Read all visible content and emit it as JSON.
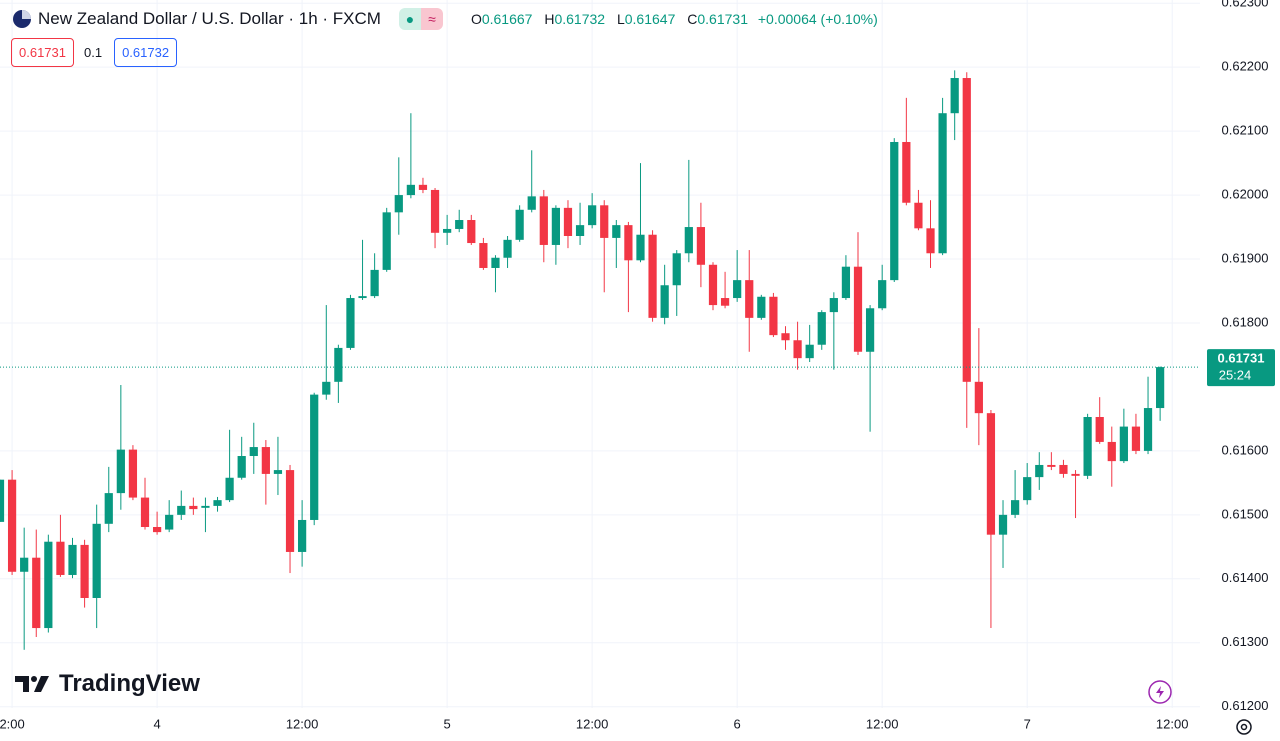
{
  "header": {
    "symbol": "New Zealand Dollar / U.S. Dollar · 1h · FXCM",
    "open_key": "O",
    "open": "0.61667",
    "high_key": "H",
    "high": "0.61732",
    "low_key": "L",
    "low": "0.61647",
    "close_key": "C",
    "close": "0.61731",
    "change": "+0.00064 (+0.10%)",
    "sell": "0.61731",
    "spread": "0.1",
    "buy": "0.61732",
    "logo": "TradingView"
  },
  "chart_data": {
    "type": "candlestick",
    "up_color": "#089981",
    "down_color": "#f23645",
    "grid": true,
    "x": [
      -13,
      -12,
      -11,
      -10,
      -9,
      -8,
      -7,
      -6,
      -5,
      -4,
      -3,
      -2,
      -1,
      0,
      1,
      2,
      3,
      4,
      5,
      6,
      7,
      8,
      9,
      10,
      11,
      12,
      13,
      14,
      15,
      16,
      17,
      18,
      19,
      20,
      21,
      22,
      23,
      24,
      25,
      26,
      27,
      28,
      29,
      30,
      31,
      32,
      33,
      34,
      35,
      36,
      37,
      38,
      39,
      40,
      41,
      42,
      43,
      44,
      45,
      46,
      47,
      48,
      49,
      50,
      51,
      52,
      53,
      54,
      55,
      56,
      57,
      58,
      59,
      60,
      61,
      62,
      63,
      64,
      65,
      66,
      67,
      68,
      69,
      70,
      71,
      72,
      73,
      74,
      75,
      76,
      77,
      78,
      79,
      80,
      81,
      82,
      83
    ],
    "open": [
      0.61489,
      0.61555,
      0.61411,
      0.61433,
      0.61323,
      0.61458,
      0.61406,
      0.61453,
      0.6137,
      0.61486,
      0.61534,
      0.61602,
      0.61527,
      0.61481,
      0.61477,
      0.615,
      0.61514,
      0.61511,
      0.61514,
      0.61523,
      0.61558,
      0.61592,
      0.61606,
      0.61564,
      0.6157,
      0.61442,
      0.61492,
      0.61688,
      0.61708,
      0.61761,
      0.61839,
      0.61842,
      0.61883,
      0.61973,
      0.62,
      0.62016,
      0.62008,
      0.61941,
      0.61947,
      0.61961,
      0.61925,
      0.61886,
      0.61902,
      0.6193,
      0.61977,
      0.61998,
      0.61922,
      0.6198,
      0.61936,
      0.61953,
      0.61984,
      0.61933,
      0.61953,
      0.61898,
      0.61938,
      0.61808,
      0.61859,
      0.61909,
      0.6195,
      0.61891,
      0.61839,
      0.61839,
      0.61867,
      0.61808,
      0.61841,
      0.61784,
      0.61773,
      0.61745,
      0.61766,
      0.61817,
      0.61839,
      0.61888,
      0.61755,
      0.61823,
      0.61867,
      0.62083,
      0.61988,
      0.61948,
      0.61909,
      0.62128,
      0.62183,
      0.61708,
      0.61659,
      0.61469,
      0.615,
      0.61523,
      0.61559,
      0.61578,
      0.61578,
      0.61564,
      0.61561,
      0.61653,
      0.61614,
      0.61584,
      0.61638,
      0.616,
      0.61667
    ],
    "high": [
      0.61555,
      0.6157,
      0.6148,
      0.61477,
      0.61469,
      0.615,
      0.61464,
      0.61461,
      0.61516,
      0.61575,
      0.61703,
      0.61609,
      0.61558,
      0.61505,
      0.61523,
      0.61538,
      0.61527,
      0.61527,
      0.61528,
      0.61633,
      0.61622,
      0.61644,
      0.61617,
      0.61622,
      0.61578,
      0.61523,
      0.61691,
      0.61828,
      0.61766,
      0.61844,
      0.6193,
      0.61909,
      0.6198,
      0.62059,
      0.62128,
      0.62027,
      0.62011,
      0.61969,
      0.61977,
      0.61969,
      0.61933,
      0.61906,
      0.61936,
      0.61984,
      0.6207,
      0.62008,
      0.61984,
      0.61992,
      0.61988,
      0.62003,
      0.61992,
      0.61961,
      0.61958,
      0.6205,
      0.61945,
      0.61891,
      0.61914,
      0.62055,
      0.61988,
      0.61895,
      0.6188,
      0.61914,
      0.61914,
      0.61844,
      0.61847,
      0.61795,
      0.61802,
      0.61797,
      0.6182,
      0.61848,
      0.61906,
      0.61942,
      0.61828,
      0.61891,
      0.62089,
      0.62152,
      0.62008,
      0.61992,
      0.62152,
      0.62195,
      0.62192,
      0.61792,
      0.61664,
      0.61523,
      0.6157,
      0.61581,
      0.61598,
      0.61598,
      0.61586,
      0.6157,
      0.61658,
      0.61684,
      0.61638,
      0.61666,
      0.61658,
      0.61716,
      0.61732
    ],
    "low": [
      0.61489,
      0.61406,
      0.61289,
      0.61309,
      0.61316,
      0.61403,
      0.61401,
      0.61355,
      0.61323,
      0.61473,
      0.61508,
      0.61523,
      0.61477,
      0.61469,
      0.61473,
      0.61492,
      0.615,
      0.61473,
      0.61505,
      0.6152,
      0.61555,
      0.61564,
      0.61516,
      0.61531,
      0.61409,
      0.61419,
      0.61484,
      0.6168,
      0.61675,
      0.61758,
      0.61836,
      0.61839,
      0.6188,
      0.61938,
      0.61995,
      0.62003,
      0.61917,
      0.61922,
      0.61942,
      0.61922,
      0.61883,
      0.61848,
      0.61886,
      0.61927,
      0.61973,
      0.61895,
      0.61891,
      0.61917,
      0.61922,
      0.61948,
      0.61848,
      0.61886,
      0.61817,
      0.61895,
      0.61802,
      0.61798,
      0.61811,
      0.61895,
      0.61856,
      0.6182,
      0.61823,
      0.61833,
      0.61755,
      0.61805,
      0.61778,
      0.61758,
      0.61727,
      0.61739,
      0.61758,
      0.61727,
      0.61836,
      0.6175,
      0.6163,
      0.6182,
      0.61864,
      0.61984,
      0.61945,
      0.61886,
      0.61906,
      0.62086,
      0.61636,
      0.61609,
      0.61323,
      0.61417,
      0.61495,
      0.61516,
      0.61539,
      0.6157,
      0.61558,
      0.61495,
      0.61556,
      0.61611,
      0.61544,
      0.61581,
      0.61595,
      0.61595,
      0.61647
    ],
    "close": [
      0.61555,
      0.61411,
      0.61433,
      0.61323,
      0.61458,
      0.61406,
      0.61453,
      0.6137,
      0.61486,
      0.61534,
      0.61602,
      0.61527,
      0.61481,
      0.61473,
      0.615,
      0.61514,
      0.61509,
      0.61514,
      0.61523,
      0.61558,
      0.61592,
      0.61606,
      0.61564,
      0.6157,
      0.61442,
      0.61492,
      0.61688,
      0.61708,
      0.61761,
      0.61839,
      0.61842,
      0.61883,
      0.61973,
      0.62,
      0.62016,
      0.62008,
      0.61941,
      0.61947,
      0.61961,
      0.61925,
      0.61886,
      0.61902,
      0.6193,
      0.61977,
      0.61998,
      0.61922,
      0.6198,
      0.61936,
      0.61953,
      0.61984,
      0.61933,
      0.61953,
      0.61898,
      0.61938,
      0.61808,
      0.61859,
      0.61909,
      0.6195,
      0.61891,
      0.61828,
      0.61827,
      0.61867,
      0.61808,
      0.61841,
      0.61781,
      0.61773,
      0.61745,
      0.61766,
      0.61817,
      0.61839,
      0.61888,
      0.61755,
      0.61823,
      0.61867,
      0.62083,
      0.61988,
      0.61948,
      0.61909,
      0.62128,
      0.62183,
      0.61708,
      0.61659,
      0.61469,
      0.615,
      0.61523,
      0.61559,
      0.61578,
      0.61575,
      0.61564,
      0.61561,
      0.61653,
      0.61614,
      0.61584,
      0.61638,
      0.616,
      0.61667,
      0.61731
    ],
    "xlim": [
      -13,
      86.3
    ],
    "xticks": [
      {
        "value": -12,
        "label": "2:00"
      },
      {
        "value": 0,
        "label": "4"
      },
      {
        "value": 12,
        "label": "12:00"
      },
      {
        "value": 24,
        "label": "5"
      },
      {
        "value": 36,
        "label": "12:00"
      },
      {
        "value": 48,
        "label": "6"
      },
      {
        "value": 60,
        "label": "12:00"
      },
      {
        "value": 72,
        "label": "7"
      },
      {
        "value": 84,
        "label": "12:00"
      }
    ],
    "ylim": [
      0.61198,
      0.62305
    ],
    "yticks": [
      {
        "value": 0.623,
        "label": "0.62300"
      },
      {
        "value": 0.622,
        "label": "0.62200"
      },
      {
        "value": 0.621,
        "label": "0.62100"
      },
      {
        "value": 0.62,
        "label": "0.62000"
      },
      {
        "value": 0.619,
        "label": "0.61900"
      },
      {
        "value": 0.618,
        "label": "0.61800"
      },
      {
        "value": 0.616,
        "label": "0.61600"
      },
      {
        "value": 0.615,
        "label": "0.61500"
      },
      {
        "value": 0.614,
        "label": "0.61400"
      },
      {
        "value": 0.613,
        "label": "0.61300"
      },
      {
        "value": 0.612,
        "label": "0.61200"
      }
    ],
    "last_price": {
      "value": 0.61731,
      "label": "0.61731"
    },
    "countdown": "25:24"
  }
}
